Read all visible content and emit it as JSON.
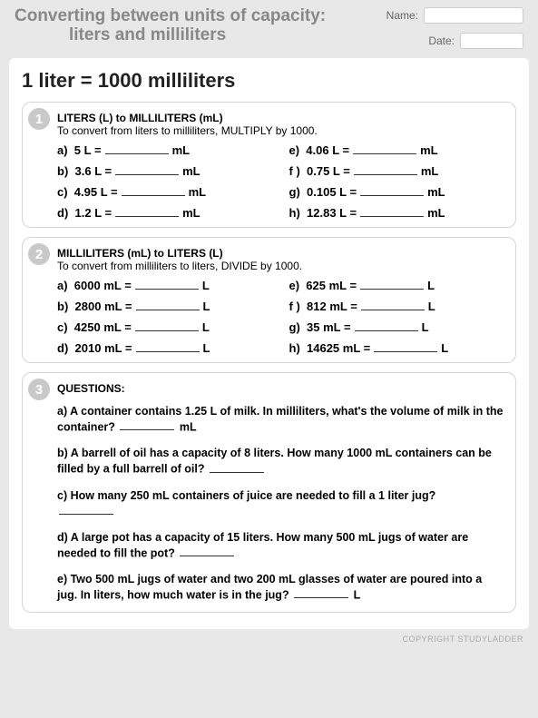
{
  "header": {
    "title_line1": "Converting between units of capacity:",
    "title_line2": "liters and milliliters",
    "name_label": "Name:",
    "date_label": "Date:"
  },
  "rule": "1 liter = 1000 milliliters",
  "section1": {
    "num": "1",
    "title": "LITERS (L) to MILLILITERS (mL)",
    "inst": "To convert from liters to milliliters, MULTIPLY by 1000.",
    "unit": "mL",
    "left": [
      {
        "l": "a)",
        "v": "5 L ="
      },
      {
        "l": "b)",
        "v": "3.6 L ="
      },
      {
        "l": "c)",
        "v": "4.95 L ="
      },
      {
        "l": "d)",
        "v": "1.2 L ="
      }
    ],
    "right": [
      {
        "l": "e)",
        "v": "4.06 L ="
      },
      {
        "l": "f )",
        "v": "0.75 L ="
      },
      {
        "l": "g)",
        "v": "0.105 L ="
      },
      {
        "l": "h)",
        "v": "12.83 L ="
      }
    ]
  },
  "section2": {
    "num": "2",
    "title": "MILLILITERS (mL) to LITERS (L)",
    "inst": "To convert from milliliters to liters, DIVIDE by 1000.",
    "unit": "L",
    "left": [
      {
        "l": "a)",
        "v": "6000 mL ="
      },
      {
        "l": "b)",
        "v": "2800 mL ="
      },
      {
        "l": "c)",
        "v": "4250 mL ="
      },
      {
        "l": "d)",
        "v": "2010 mL ="
      }
    ],
    "right": [
      {
        "l": "e)",
        "v": "625 mL ="
      },
      {
        "l": "f )",
        "v": "812 mL ="
      },
      {
        "l": "g)",
        "v": "35 mL  ="
      },
      {
        "l": "h)",
        "v": "14625 mL ="
      }
    ]
  },
  "section3": {
    "num": "3",
    "title": "QUESTIONS:",
    "qa_pre": "a) A container contains 1.25 L of milk. In milliliters, what's the volume of milk in the container?",
    "qa_post": "mL",
    "qb_pre": "b) A barrell of oil has a capacity of 8 liters. How many 1000 mL containers can be filled by a full barrell of oil?",
    "qc": "c) How many 250 mL containers of juice are needed to fill a 1 liter jug?",
    "qd_pre": "d) A large pot has a capacity of 15 liters. How many 500 mL jugs of water are needed to fill the pot?",
    "qe_pre": "e) Two 500 mL jugs of water and two 200 mL glasses of water are poured into a jug. In liters, how much water is in the jug?",
    "qe_post": "L"
  },
  "footer": "COPYRIGHT STUDYLADDER"
}
